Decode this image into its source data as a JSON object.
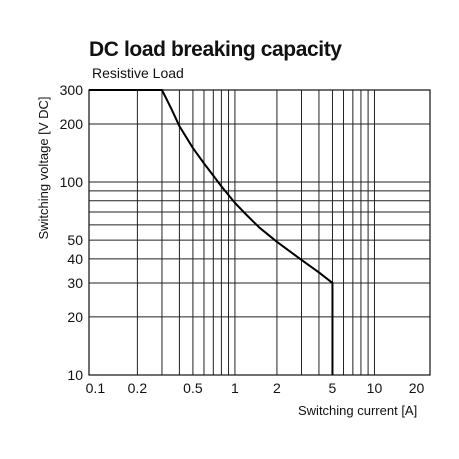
{
  "chart_data": {
    "type": "line",
    "title": "DC load breaking capacity",
    "subtitle": "Resistive Load",
    "xlabel": "Switching current [A]",
    "ylabel": "Switching voltage [V DC]",
    "x_scale": "log",
    "y_scale": "log",
    "xlim": [
      0.09,
      25
    ],
    "ylim": [
      10,
      300
    ],
    "x_ticks": [
      0.1,
      0.2,
      0.5,
      1,
      2,
      5,
      10,
      20
    ],
    "x_tick_labels": [
      "0.1",
      "0.2",
      "0.5",
      "1",
      "2",
      "5",
      "10",
      "20"
    ],
    "y_ticks": [
      10,
      20,
      30,
      40,
      50,
      100,
      200,
      300
    ],
    "y_tick_labels": [
      "10",
      "20",
      "30",
      "40",
      "50",
      "100",
      "200",
      "300"
    ],
    "x_grid": [
      0.2,
      0.3,
      0.4,
      0.5,
      0.6,
      0.7,
      0.8,
      0.9,
      1,
      2,
      3,
      4,
      5,
      6,
      7,
      8,
      9,
      10
    ],
    "y_grid": [
      10,
      20,
      30,
      40,
      50,
      60,
      70,
      80,
      90,
      100,
      200,
      300
    ],
    "grid": true,
    "series": [
      {
        "x": [
          0.09,
          0.3,
          0.35,
          0.4,
          0.5,
          0.6,
          0.7,
          0.8,
          1,
          1.2,
          1.5,
          2,
          2.5,
          3,
          4,
          5,
          5,
          5
        ],
        "values": [
          300,
          300,
          240,
          195,
          150,
          125,
          108,
          95,
          78,
          68,
          58,
          49,
          43.5,
          39.5,
          34,
          30,
          20,
          10
        ]
      }
    ]
  }
}
